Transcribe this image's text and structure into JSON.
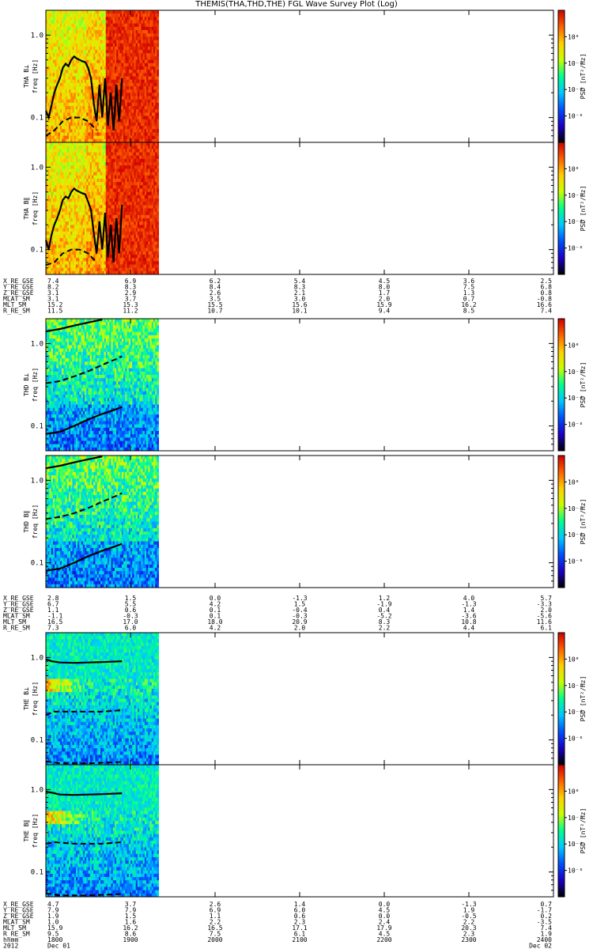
{
  "title": "THEMIS(THA,THD,THE) FGL Wave Survey Plot (Log)",
  "colors": {
    "background": "#ffffff",
    "axis": "#000000",
    "curve": "#000000"
  },
  "chart_data": {
    "type": "heatmap",
    "x_range": [
      "1800",
      "2400"
    ],
    "x_ticks": [
      "1800",
      "1900",
      "2000",
      "2100",
      "2200",
      "2300",
      "2400"
    ],
    "data_end_time": "1920",
    "y_scale": "log",
    "y_range": [
      0.05,
      2.0
    ],
    "y_ticks": [
      {
        "value": 1.0,
        "label": "1.0"
      },
      {
        "value": 0.1,
        "label": "0.1"
      }
    ],
    "colorbar": {
      "label": "PSD [nT²/Hz]",
      "range": [
        -8,
        2
      ],
      "ticks": [
        {
          "value": 0,
          "label": "10⁰"
        },
        {
          "value": -2,
          "label": "10⁻²"
        },
        {
          "value": -4,
          "label": "10⁻⁴"
        },
        {
          "value": -6,
          "label": "10⁻⁶"
        }
      ],
      "colors": [
        "#000000",
        "#1a00c8",
        "#0050ff",
        "#00c8ff",
        "#00ff90",
        "#c8ff00",
        "#ffd000",
        "#ff6000",
        "#d00000"
      ]
    },
    "panels": [
      {
        "id": "tha-bperp",
        "ylabel": "THA B⊥\nfreq [Hz]",
        "style": "tha",
        "curves": [
          {
            "style": "solid",
            "points": [
              [
                1800,
                0.12
              ],
              [
                1802,
                0.1
              ],
              [
                1804,
                0.14
              ],
              [
                1806,
                0.2
              ],
              [
                1808,
                0.25
              ],
              [
                1810,
                0.3
              ],
              [
                1812,
                0.4
              ],
              [
                1814,
                0.45
              ],
              [
                1816,
                0.42
              ],
              [
                1818,
                0.5
              ],
              [
                1820,
                0.55
              ],
              [
                1822,
                0.52
              ],
              [
                1824,
                0.5
              ],
              [
                1826,
                0.48
              ],
              [
                1828,
                0.47
              ],
              [
                1830,
                0.4
              ],
              [
                1832,
                0.3
              ],
              [
                1834,
                0.15
              ],
              [
                1836,
                0.09
              ],
              [
                1838,
                0.25
              ],
              [
                1840,
                0.1
              ],
              [
                1842,
                0.3
              ],
              [
                1844,
                0.08
              ],
              [
                1846,
                0.2
              ],
              [
                1848,
                0.07
              ],
              [
                1850,
                0.25
              ],
              [
                1852,
                0.09
              ],
              [
                1854,
                0.3
              ]
            ]
          },
          {
            "style": "dashed",
            "points": [
              [
                1800,
                0.06
              ],
              [
                1806,
                0.07
              ],
              [
                1812,
                0.09
              ],
              [
                1818,
                0.1
              ],
              [
                1824,
                0.1
              ],
              [
                1830,
                0.09
              ],
              [
                1836,
                0.07
              ]
            ]
          }
        ]
      },
      {
        "id": "tha-bpar",
        "ylabel": "THA B∥\nfreq [Hz]",
        "style": "tha",
        "curves": [
          {
            "style": "solid",
            "points": [
              [
                1800,
                0.13
              ],
              [
                1802,
                0.1
              ],
              [
                1804,
                0.15
              ],
              [
                1806,
                0.2
              ],
              [
                1808,
                0.24
              ],
              [
                1810,
                0.3
              ],
              [
                1812,
                0.4
              ],
              [
                1814,
                0.44
              ],
              [
                1816,
                0.42
              ],
              [
                1818,
                0.5
              ],
              [
                1820,
                0.55
              ],
              [
                1822,
                0.52
              ],
              [
                1824,
                0.5
              ],
              [
                1826,
                0.48
              ],
              [
                1828,
                0.47
              ],
              [
                1830,
                0.38
              ],
              [
                1832,
                0.3
              ],
              [
                1834,
                0.16
              ],
              [
                1836,
                0.09
              ],
              [
                1838,
                0.22
              ],
              [
                1840,
                0.1
              ],
              [
                1842,
                0.28
              ],
              [
                1844,
                0.08
              ],
              [
                1846,
                0.2
              ],
              [
                1848,
                0.07
              ],
              [
                1850,
                0.24
              ],
              [
                1852,
                0.09
              ],
              [
                1854,
                0.35
              ]
            ]
          },
          {
            "style": "dashed",
            "points": [
              [
                1800,
                0.065
              ],
              [
                1806,
                0.07
              ],
              [
                1812,
                0.09
              ],
              [
                1818,
                0.1
              ],
              [
                1824,
                0.1
              ],
              [
                1830,
                0.09
              ],
              [
                1836,
                0.07
              ]
            ]
          }
        ]
      },
      {
        "id": "thd-bperp",
        "ylabel": "THD B⊥\nfreq [Hz]",
        "style": "thd",
        "curves": [
          {
            "style": "solid",
            "points": [
              [
                1800,
                1.4
              ],
              [
                1810,
                1.5
              ],
              [
                1820,
                1.65
              ],
              [
                1830,
                1.8
              ],
              [
                1840,
                1.95
              ]
            ]
          },
          {
            "style": "dashed",
            "points": [
              [
                1800,
                0.33
              ],
              [
                1810,
                0.35
              ],
              [
                1820,
                0.4
              ],
              [
                1830,
                0.46
              ],
              [
                1840,
                0.55
              ],
              [
                1850,
                0.65
              ],
              [
                1854,
                0.7
              ]
            ]
          },
          {
            "style": "solid",
            "points": [
              [
                1800,
                0.08
              ],
              [
                1810,
                0.085
              ],
              [
                1820,
                0.1
              ],
              [
                1830,
                0.12
              ],
              [
                1840,
                0.14
              ],
              [
                1850,
                0.16
              ],
              [
                1854,
                0.17
              ]
            ]
          }
        ]
      },
      {
        "id": "thd-bpar",
        "ylabel": "THD B∥\nfreq [Hz]",
        "style": "thd",
        "curves": [
          {
            "style": "solid",
            "points": [
              [
                1800,
                1.4
              ],
              [
                1810,
                1.5
              ],
              [
                1820,
                1.65
              ],
              [
                1830,
                1.8
              ],
              [
                1840,
                1.95
              ]
            ]
          },
          {
            "style": "dashed",
            "points": [
              [
                1800,
                0.34
              ],
              [
                1810,
                0.36
              ],
              [
                1820,
                0.4
              ],
              [
                1830,
                0.46
              ],
              [
                1840,
                0.55
              ],
              [
                1850,
                0.65
              ],
              [
                1854,
                0.7
              ]
            ]
          },
          {
            "style": "solid",
            "points": [
              [
                1800,
                0.08
              ],
              [
                1810,
                0.085
              ],
              [
                1820,
                0.1
              ],
              [
                1830,
                0.12
              ],
              [
                1840,
                0.14
              ],
              [
                1850,
                0.16
              ],
              [
                1854,
                0.17
              ]
            ]
          }
        ]
      },
      {
        "id": "the-bperp",
        "ylabel": "THE B⊥\nfreq [Hz]",
        "style": "the",
        "curves": [
          {
            "style": "solid",
            "points": [
              [
                1800,
                0.95
              ],
              [
                1802,
                0.93
              ],
              [
                1804,
                0.9
              ],
              [
                1810,
                0.87
              ],
              [
                1820,
                0.86
              ],
              [
                1830,
                0.87
              ],
              [
                1840,
                0.88
              ],
              [
                1854,
                0.9
              ]
            ]
          },
          {
            "style": "dashed",
            "points": [
              [
                1800,
                0.2
              ],
              [
                1806,
                0.22
              ],
              [
                1820,
                0.22
              ],
              [
                1840,
                0.22
              ],
              [
                1854,
                0.23
              ]
            ]
          },
          {
            "style": "dashed",
            "points": [
              [
                1800,
                0.055
              ],
              [
                1810,
                0.052
              ],
              [
                1830,
                0.052
              ],
              [
                1854,
                0.054
              ]
            ]
          }
        ]
      },
      {
        "id": "the-bpar",
        "ylabel": "THE B∥\nfreq [Hz]",
        "style": "the",
        "curves": [
          {
            "style": "solid",
            "points": [
              [
                1800,
                0.95
              ],
              [
                1802,
                0.93
              ],
              [
                1804,
                0.92
              ],
              [
                1810,
                0.87
              ],
              [
                1820,
                0.86
              ],
              [
                1830,
                0.87
              ],
              [
                1840,
                0.88
              ],
              [
                1854,
                0.9
              ]
            ]
          },
          {
            "style": "dashed",
            "points": [
              [
                1800,
                0.22
              ],
              [
                1806,
                0.23
              ],
              [
                1820,
                0.22
              ],
              [
                1840,
                0.22
              ],
              [
                1854,
                0.23
              ]
            ]
          },
          {
            "style": "dashed",
            "points": [
              [
                1800,
                0.055
              ],
              [
                1810,
                0.052
              ],
              [
                1830,
                0.052
              ],
              [
                1854,
                0.054
              ]
            ]
          }
        ]
      }
    ],
    "ephemeris_blocks": [
      {
        "rows": [
          {
            "label": "X_RE_GSE",
            "values": [
              "7.4",
              "6.9",
              "6.2",
              "5.4",
              "4.5",
              "3.6",
              "2.5"
            ]
          },
          {
            "label": "Y_RE_GSE",
            "values": [
              "8.2",
              "8.3",
              "8.4",
              "8.3",
              "8.0",
              "7.5",
              "6.8"
            ]
          },
          {
            "label": "Z_RE_GSE",
            "values": [
              "3.1",
              "2.9",
              "2.6",
              "2.1",
              "1.7",
              "1.3",
              "0.8"
            ]
          },
          {
            "label": "MLAT_SM",
            "values": [
              "3.1",
              "3.7",
              "3.5",
              "3.0",
              "2.0",
              "0.7",
              "-0.8"
            ]
          },
          {
            "label": "MLT_SM",
            "values": [
              "15.2",
              "15.3",
              "15.5",
              "15.6",
              "15.9",
              "16.2",
              "16.6"
            ]
          },
          {
            "label": "R_RE_SM",
            "values": [
              "11.5",
              "11.2",
              "10.7",
              "10.1",
              "9.4",
              "8.5",
              "7.4"
            ]
          }
        ]
      },
      {
        "rows": [
          {
            "label": "X_RE_GSE",
            "values": [
              "2.8",
              "1.5",
              "0.0",
              "-1.3",
              "1.2",
              "4.0",
              "5.7"
            ]
          },
          {
            "label": "Y_RE_GSE",
            "values": [
              "6.7",
              "5.5",
              "4.2",
              "1.5",
              "-1.9",
              "-1.3",
              "-3.3"
            ]
          },
          {
            "label": "Z_RE_GSE",
            "values": [
              "1.1",
              "0.6",
              "0.1",
              "-0.4",
              "0.4",
              "1.4",
              "2.0"
            ]
          },
          {
            "label": "MLAT_SM",
            "values": [
              "-1.1",
              "-0.3",
              "0.1",
              "-0.3",
              "-5.2",
              "-3.6",
              "-5.6"
            ]
          },
          {
            "label": "MLT_SM",
            "values": [
              "16.5",
              "17.0",
              "18.0",
              "20.9",
              "8.3",
              "10.8",
              "11.6"
            ]
          },
          {
            "label": "R_RE_SM",
            "values": [
              "7.3",
              "6.0",
              "4.2",
              "2.0",
              "2.2",
              "4.4",
              "6.1"
            ]
          }
        ]
      },
      {
        "rows": [
          {
            "label": "X_RE_GSE",
            "values": [
              "4.7",
              "3.7",
              "2.6",
              "1.4",
              "0.0",
              "-1.3",
              "0.7"
            ]
          },
          {
            "label": "Y_RE_GSE",
            "values": [
              "7.9",
              "7.9",
              "6.9",
              "6.0",
              "4.5",
              "1.9",
              "-1.7"
            ]
          },
          {
            "label": "Z_RE_GSE",
            "values": [
              "1.9",
              "1.5",
              "1.1",
              "0.6",
              "0.0",
              "-0.5",
              "0.2"
            ]
          },
          {
            "label": "MLAT_SM",
            "values": [
              "1.0",
              "1.6",
              "2.2",
              "2.3",
              "2.4",
              "2.2",
              "-3.5"
            ]
          },
          {
            "label": "MLT_SM",
            "values": [
              "15.9",
              "16.2",
              "16.5",
              "17.1",
              "17.9",
              "20.3",
              "7.4"
            ]
          },
          {
            "label": "R_RE_SM",
            "values": [
              "9.5",
              "8.6",
              "7.5",
              "6.1",
              "4.5",
              "2.3",
              "1.9"
            ]
          }
        ]
      }
    ],
    "time_axis": {
      "label": "hhmm",
      "year": "2012",
      "start_date": "Dec 01",
      "end_date": "Dec 02"
    }
  }
}
